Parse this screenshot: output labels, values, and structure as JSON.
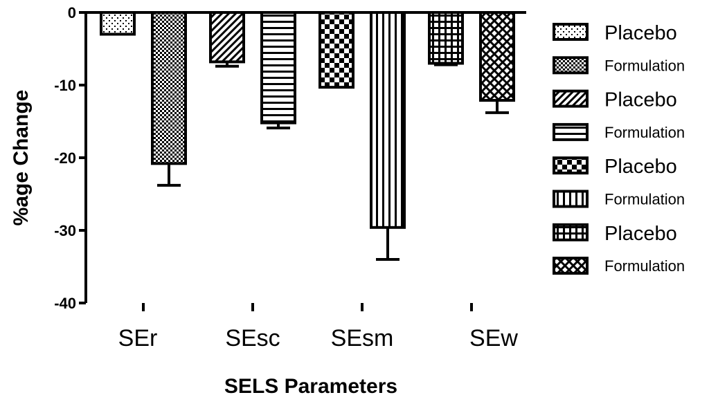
{
  "chart_data": {
    "type": "bar",
    "title": "",
    "xlabel": "SELS Parameters",
    "ylabel": "%age Change",
    "ylim": [
      -40,
      0
    ],
    "yticks": [
      0,
      -10,
      -20,
      -30,
      -40
    ],
    "categories": [
      "SEr",
      "SEsc",
      "SEsm",
      "SEw"
    ],
    "series": [
      {
        "name": "Placebo",
        "group": "SEr",
        "value": -3.0,
        "error": 0,
        "pattern": "dots-sparse"
      },
      {
        "name": "Formulation",
        "group": "SEr",
        "value": -20.8,
        "error": 3.0,
        "pattern": "checker-fine"
      },
      {
        "name": "Placebo",
        "group": "SEsc",
        "value": -6.8,
        "error": 0.6,
        "pattern": "diagonal"
      },
      {
        "name": "Formulation",
        "group": "SEsc",
        "value": -15.2,
        "error": 0.7,
        "pattern": "horizontal"
      },
      {
        "name": "Placebo",
        "group": "SEsm",
        "value": -10.3,
        "error": 0,
        "pattern": "checker-coarse"
      },
      {
        "name": "Formulation",
        "group": "SEsm",
        "value": -29.6,
        "error": 4.4,
        "pattern": "vertical"
      },
      {
        "name": "Placebo",
        "group": "SEw",
        "value": -7.0,
        "error": 0.2,
        "pattern": "grid"
      },
      {
        "name": "Formulation",
        "group": "SEw",
        "value": -12.1,
        "error": 1.7,
        "pattern": "crosshatch"
      }
    ],
    "legend": {
      "placement": "right",
      "entries": [
        "Placebo",
        "Formulation",
        "Placebo",
        "Formulation",
        "Placebo",
        "Formulation",
        "Placebo",
        "Formulation"
      ]
    }
  }
}
